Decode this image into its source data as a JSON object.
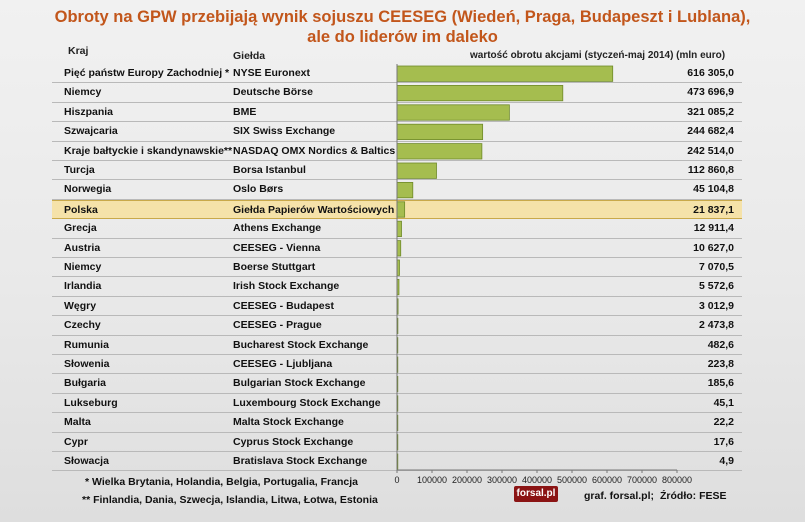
{
  "title_line1": "Obroty na GPW przebijają wynik sojuszu CEESEG (Wiedeń, Praga, Budapeszt i Lublana),",
  "title_line2": "ale do liderów im daleko",
  "headers": {
    "country": "Kraj",
    "exchange": "Giełda",
    "value": "wartość obrotu akcjami (styczeń-maj 2014) (mln euro)"
  },
  "colors": {
    "bar": "#a5bd4f",
    "bar_stroke": "#6f8a2a",
    "title": "#c2561b",
    "highlight": "#f5e2a9"
  },
  "highlight_country": "Polska",
  "rows": [
    {
      "country": "Pięć państw Europy Zachodniej *",
      "exchange": "NYSE Euronext",
      "value_label": "616 305,0"
    },
    {
      "country": "Niemcy",
      "exchange": "Deutsche Börse",
      "value_label": "473 696,9"
    },
    {
      "country": "Hiszpania",
      "exchange": "BME",
      "value_label": "321 085,2"
    },
    {
      "country": "Szwajcaria",
      "exchange": "SIX Swiss Exchange",
      "value_label": "244 682,4"
    },
    {
      "country": "Kraje bałtyckie i skandynawskie**",
      "exchange": "NASDAQ OMX Nordics & Baltics",
      "value_label": "242 514,0"
    },
    {
      "country": "Turcja",
      "exchange": "Borsa Istanbul",
      "value_label": "112 860,8"
    },
    {
      "country": "Norwegia",
      "exchange": "Oslo Børs",
      "value_label": "45 104,8"
    },
    {
      "country": "Polska",
      "exchange": "Giełda Papierów Wartościowych",
      "value_label": "21 837,1"
    },
    {
      "country": "Grecja",
      "exchange": "Athens Exchange",
      "value_label": "12 911,4"
    },
    {
      "country": "Austria",
      "exchange": "CEESEG - Vienna",
      "value_label": "10 627,0"
    },
    {
      "country": "Niemcy",
      "exchange": "Boerse Stuttgart",
      "value_label": "7 070,5"
    },
    {
      "country": "Irlandia",
      "exchange": "Irish Stock Exchange",
      "value_label": "5 572,6"
    },
    {
      "country": "Węgry",
      "exchange": "CEESEG - Budapest",
      "value_label": "3 012,9"
    },
    {
      "country": "Czechy",
      "exchange": "CEESEG - Prague",
      "value_label": "2 473,8"
    },
    {
      "country": "Rumunia",
      "exchange": "Bucharest Stock Exchange",
      "value_label": "482,6"
    },
    {
      "country": "Słowenia",
      "exchange": "CEESEG - Ljubljana",
      "value_label": "223,8"
    },
    {
      "country": "Bułgaria",
      "exchange": "Bulgarian Stock Exchange",
      "value_label": "185,6"
    },
    {
      "country": "Lukseburg",
      "exchange": "Luxembourg Stock Exchange",
      "value_label": "45,1"
    },
    {
      "country": "Malta",
      "exchange": "Malta Stock Exchange",
      "value_label": "22,2"
    },
    {
      "country": "Cypr",
      "exchange": "Cyprus Stock Exchange",
      "value_label": "17,6"
    },
    {
      "country": "Słowacja",
      "exchange": "Bratislava Stock Exchange",
      "value_label": "4,9"
    }
  ],
  "chart_data": {
    "type": "bar",
    "orientation": "horizontal",
    "categories": [
      "NYSE Euronext",
      "Deutsche Börse",
      "BME",
      "SIX Swiss Exchange",
      "NASDAQ OMX Nordics & Baltics",
      "Borsa Istanbul",
      "Oslo Børs",
      "Giełda Papierów Wartościowych",
      "Athens Exchange",
      "CEESEG - Vienna",
      "Boerse Stuttgart",
      "Irish Stock Exchange",
      "CEESEG - Budapest",
      "CEESEG - Prague",
      "Bucharest Stock Exchange",
      "CEESEG - Ljubljana",
      "Bulgarian Stock Exchange",
      "Luxembourg Stock Exchange",
      "Malta Stock Exchange",
      "Cyprus Stock Exchange",
      "Bratislava Stock Exchange"
    ],
    "values": [
      616305.0,
      473696.9,
      321085.2,
      244682.4,
      242514.0,
      112860.8,
      45104.8,
      21837.1,
      12911.4,
      10627.0,
      7070.5,
      5572.6,
      3012.9,
      2473.8,
      482.6,
      223.8,
      185.6,
      45.1,
      22.2,
      17.6,
      4.9
    ],
    "title": "Obroty na GPW przebijają wynik sojuszu CEESEG (Wiedeń, Praga, Budapeszt i Lublana), ale do liderów im daleko",
    "ylabel": "wartość obrotu akcjami (styczeń-maj 2014) (mln euro)",
    "xlim": [
      0,
      800000
    ],
    "xticks": [
      "0",
      "100000",
      "200000",
      "300000",
      "400000",
      "500000",
      "600000",
      "700000",
      "800000"
    ],
    "grid": false
  },
  "footnotes": {
    "note1": "* Wielka Brytania, Holandia, Belgia, Portugalia, Francja",
    "note2": "** Finlandia, Dania, Szwecja, Islandia, Litwa, Łotwa, Estonia"
  },
  "logo_text": "forsal.pl",
  "credit": "graf. forsal.pl;",
  "source": "Źródło: FESE"
}
